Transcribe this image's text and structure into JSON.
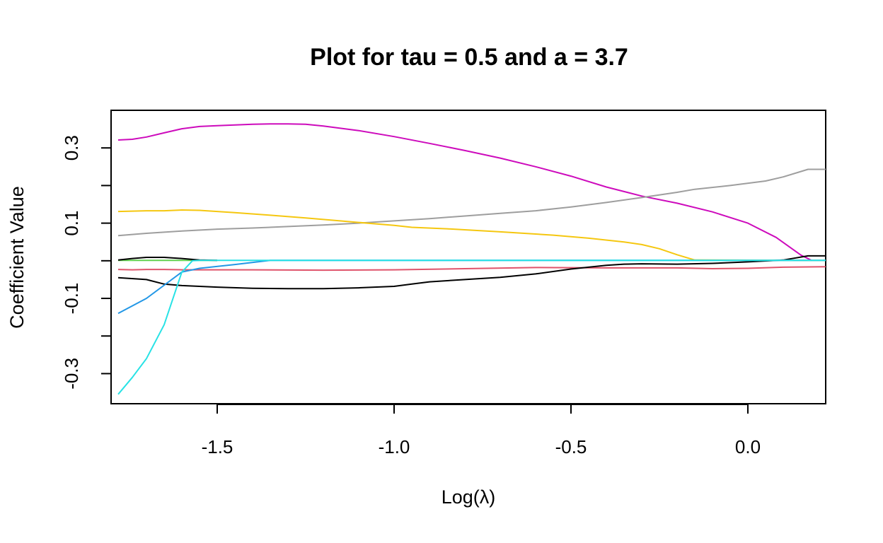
{
  "chart_data": {
    "type": "line",
    "title": "Plot for tau =  0.5  and a =  3.7",
    "xlabel": "Log(λ)",
    "ylabel": "Coefficient Value",
    "xlim": [
      -1.8,
      0.22
    ],
    "ylim": [
      -0.38,
      0.4
    ],
    "x_ticks": [
      {
        "value": -1.5,
        "label": "-1.5"
      },
      {
        "value": -1.0,
        "label": "-1.0"
      },
      {
        "value": -0.5,
        "label": "-0.5"
      },
      {
        "value": 0.0,
        "label": "0.0"
      }
    ],
    "y_ticks": [
      {
        "value": -0.3,
        "label": "-0.3"
      },
      {
        "value": -0.2,
        "label": ""
      },
      {
        "value": -0.1,
        "label": "-0.1"
      },
      {
        "value": 0.0,
        "label": ""
      },
      {
        "value": 0.1,
        "label": "0.1"
      },
      {
        "value": 0.2,
        "label": ""
      },
      {
        "value": 0.3,
        "label": "0.3"
      }
    ],
    "grid": false,
    "legend": "none",
    "series": [
      {
        "color": "#cd0bbc",
        "points": [
          [
            -1.78,
            0.321
          ],
          [
            -1.74,
            0.323
          ],
          [
            -1.7,
            0.329
          ],
          [
            -1.65,
            0.34
          ],
          [
            -1.6,
            0.351
          ],
          [
            -1.55,
            0.357
          ],
          [
            -1.5,
            0.359
          ],
          [
            -1.45,
            0.361
          ],
          [
            -1.4,
            0.363
          ],
          [
            -1.35,
            0.364
          ],
          [
            -1.3,
            0.364
          ],
          [
            -1.25,
            0.363
          ],
          [
            -1.2,
            0.358
          ],
          [
            -1.1,
            0.346
          ],
          [
            -1.0,
            0.33
          ],
          [
            -0.9,
            0.312
          ],
          [
            -0.8,
            0.293
          ],
          [
            -0.7,
            0.273
          ],
          [
            -0.6,
            0.25
          ],
          [
            -0.5,
            0.225
          ],
          [
            -0.4,
            0.196
          ],
          [
            -0.3,
            0.172
          ],
          [
            -0.2,
            0.153
          ],
          [
            -0.1,
            0.13
          ],
          [
            0.0,
            0.1
          ],
          [
            0.08,
            0.062
          ],
          [
            0.15,
            0.015
          ],
          [
            0.18,
            0.001
          ]
        ]
      },
      {
        "color": "#9e9e9e",
        "points": [
          [
            -1.78,
            0.067
          ],
          [
            -1.7,
            0.073
          ],
          [
            -1.6,
            0.079
          ],
          [
            -1.5,
            0.084
          ],
          [
            -1.4,
            0.087
          ],
          [
            -1.3,
            0.091
          ],
          [
            -1.2,
            0.095
          ],
          [
            -1.1,
            0.1
          ],
          [
            -1.0,
            0.106
          ],
          [
            -0.9,
            0.112
          ],
          [
            -0.8,
            0.119
          ],
          [
            -0.7,
            0.126
          ],
          [
            -0.6,
            0.133
          ],
          [
            -0.5,
            0.143
          ],
          [
            -0.4,
            0.155
          ],
          [
            -0.3,
            0.168
          ],
          [
            -0.2,
            0.182
          ],
          [
            -0.15,
            0.19
          ],
          [
            -0.05,
            0.2
          ],
          [
            0.05,
            0.212
          ],
          [
            0.1,
            0.223
          ],
          [
            0.17,
            0.243
          ],
          [
            0.22,
            0.243
          ]
        ]
      },
      {
        "color": "#f5c710",
        "points": [
          [
            -1.78,
            0.131
          ],
          [
            -1.7,
            0.133
          ],
          [
            -1.65,
            0.133
          ],
          [
            -1.6,
            0.135
          ],
          [
            -1.55,
            0.134
          ],
          [
            -1.45,
            0.128
          ],
          [
            -1.35,
            0.121
          ],
          [
            -1.25,
            0.114
          ],
          [
            -1.1,
            0.102
          ],
          [
            -1.0,
            0.094
          ],
          [
            -0.95,
            0.089
          ],
          [
            -0.85,
            0.085
          ],
          [
            -0.7,
            0.077
          ],
          [
            -0.55,
            0.068
          ],
          [
            -0.45,
            0.06
          ],
          [
            -0.35,
            0.05
          ],
          [
            -0.3,
            0.043
          ],
          [
            -0.25,
            0.032
          ],
          [
            -0.2,
            0.016
          ],
          [
            -0.15,
            0.002
          ],
          [
            0.22,
            0.001
          ]
        ]
      },
      {
        "color": "#61d04f",
        "points": [
          [
            -1.78,
            0.001
          ],
          [
            -1.6,
            0.001
          ],
          [
            -1.5,
            0.001
          ]
        ]
      },
      {
        "color": "#000000",
        "points": [
          [
            -1.78,
            0.002
          ],
          [
            -1.74,
            0.006
          ],
          [
            -1.7,
            0.009
          ],
          [
            -1.65,
            0.009
          ],
          [
            -1.6,
            0.006
          ],
          [
            -1.55,
            0.002
          ],
          [
            -1.5,
            0.001
          ]
        ]
      },
      {
        "color": "#df536b",
        "points": [
          [
            -1.78,
            -0.023
          ],
          [
            -1.74,
            -0.024
          ],
          [
            -1.7,
            -0.023
          ],
          [
            -1.65,
            -0.023
          ],
          [
            -1.6,
            -0.024
          ],
          [
            -1.4,
            -0.024
          ],
          [
            -1.2,
            -0.025
          ],
          [
            -1.0,
            -0.024
          ],
          [
            -0.8,
            -0.021
          ],
          [
            -0.6,
            -0.018
          ],
          [
            -0.4,
            -0.019
          ],
          [
            -0.2,
            -0.019
          ],
          [
            -0.1,
            -0.021
          ],
          [
            0.0,
            -0.02
          ],
          [
            0.1,
            -0.017
          ],
          [
            0.22,
            -0.016
          ]
        ]
      },
      {
        "color": "#000000",
        "points": [
          [
            -1.78,
            -0.045
          ],
          [
            -1.7,
            -0.05
          ],
          [
            -1.65,
            -0.062
          ],
          [
            -1.6,
            -0.066
          ],
          [
            -1.5,
            -0.07
          ],
          [
            -1.4,
            -0.073
          ],
          [
            -1.3,
            -0.074
          ],
          [
            -1.2,
            -0.074
          ],
          [
            -1.1,
            -0.072
          ],
          [
            -1.0,
            -0.068
          ],
          [
            -0.95,
            -0.062
          ],
          [
            -0.9,
            -0.056
          ],
          [
            -0.8,
            -0.05
          ],
          [
            -0.7,
            -0.044
          ],
          [
            -0.6,
            -0.035
          ],
          [
            -0.5,
            -0.022
          ],
          [
            -0.4,
            -0.012
          ],
          [
            -0.35,
            -0.009
          ],
          [
            -0.3,
            -0.008
          ],
          [
            -0.2,
            -0.009
          ],
          [
            -0.1,
            -0.007
          ],
          [
            0.0,
            -0.003
          ],
          [
            0.1,
            0.002
          ],
          [
            0.17,
            0.013
          ],
          [
            0.22,
            0.013
          ]
        ]
      },
      {
        "color": "#2297e6",
        "points": [
          [
            -1.78,
            -0.14
          ],
          [
            -1.7,
            -0.1
          ],
          [
            -1.6,
            -0.03
          ],
          [
            -1.55,
            -0.02
          ],
          [
            -1.45,
            -0.01
          ],
          [
            -1.35,
            0.001
          ],
          [
            0.22,
            0.001
          ]
        ]
      },
      {
        "color": "#28e2e5",
        "points": [
          [
            -1.78,
            -0.355
          ],
          [
            -1.74,
            -0.31
          ],
          [
            -1.7,
            -0.26
          ],
          [
            -1.65,
            -0.17
          ],
          [
            -1.6,
            -0.03
          ],
          [
            -1.57,
            0.0
          ],
          [
            -1.55,
            0.001
          ],
          [
            0.22,
            0.001
          ]
        ]
      }
    ]
  }
}
